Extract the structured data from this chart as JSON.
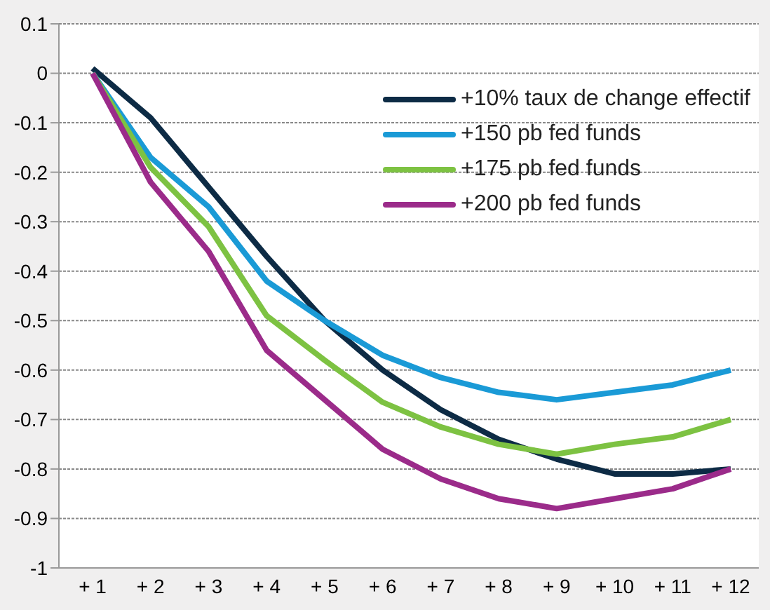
{
  "chart_data": {
    "type": "line",
    "categories": [
      "+ 1",
      "+ 2",
      "+ 3",
      "+ 4",
      "+ 5",
      "+ 6",
      "+ 7",
      "+ 8",
      "+ 9",
      "+ 10",
      "+ 11",
      "+ 12"
    ],
    "series": [
      {
        "name": "+10% taux de change effectif",
        "color": "#0d2b45",
        "values": [
          0.01,
          -0.09,
          -0.23,
          -0.37,
          -0.5,
          -0.6,
          -0.68,
          -0.74,
          -0.78,
          -0.81,
          -0.81,
          -0.8
        ]
      },
      {
        "name": "+150 pb fed funds",
        "color": "#1a9ad6",
        "values": [
          0,
          -0.17,
          -0.27,
          -0.42,
          -0.5,
          -0.57,
          -0.615,
          -0.645,
          -0.66,
          -0.645,
          -0.63,
          -0.6
        ]
      },
      {
        "name": "+175 pb fed funds",
        "color": "#7dc242",
        "values": [
          0,
          -0.19,
          -0.31,
          -0.49,
          -0.58,
          -0.665,
          -0.715,
          -0.75,
          -0.77,
          -0.75,
          -0.735,
          -0.7
        ]
      },
      {
        "name": "+200 pb fed funds",
        "color": "#9b2b8a",
        "values": [
          0,
          -0.22,
          -0.36,
          -0.56,
          -0.66,
          -0.76,
          -0.82,
          -0.86,
          -0.88,
          -0.86,
          -0.84,
          -0.8
        ]
      }
    ],
    "ylim": [
      -1,
      0.1
    ],
    "yticks": [
      0.1,
      0,
      -0.1,
      -0.2,
      -0.3,
      -0.4,
      -0.5,
      -0.6,
      -0.7,
      -0.8,
      -0.9,
      -1
    ],
    "grid": "y",
    "legend": "top right",
    "marker": "none",
    "line_style": "solid"
  }
}
